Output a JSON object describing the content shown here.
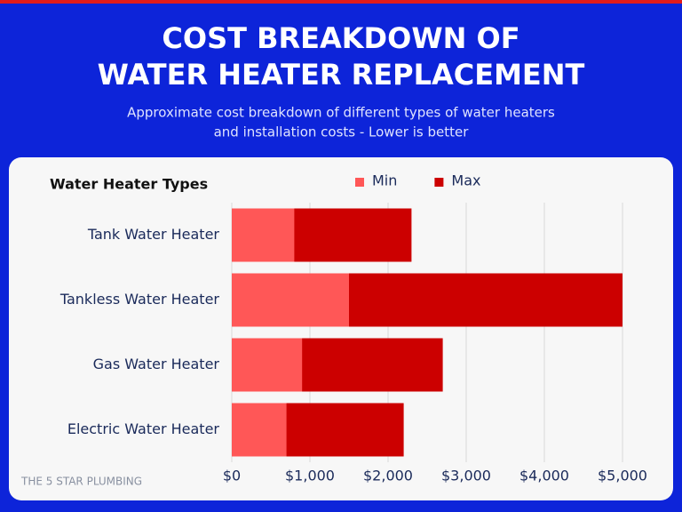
{
  "chart_data": {
    "type": "bar",
    "orientation": "horizontal",
    "overlap": true,
    "title": [
      "COST BREAKDOWN OF",
      "WATER HEATER REPLACEMENT"
    ],
    "subtitle": [
      "Approximate cost breakdown of different types of water heaters",
      "and installation costs - Lower is better"
    ],
    "y_label": "Water Heater Types",
    "categories": [
      "Tank Water Heater",
      "Tankless Water Heater",
      "Gas Water Heater",
      "Electric Water Heater"
    ],
    "series": [
      {
        "name": "Max",
        "color": "#cc0000",
        "values": [
          2300,
          5000,
          2700,
          2200
        ]
      },
      {
        "name": "Min",
        "color": "#ff5757",
        "values": [
          800,
          1500,
          900,
          700
        ]
      }
    ],
    "legend_order": [
      1,
      0
    ],
    "xlim": [
      0,
      5000
    ],
    "xticks": [
      {
        "value": 0,
        "label": "$0"
      },
      {
        "value": 1000,
        "label": "$1,000"
      },
      {
        "value": 2000,
        "label": "$2,000"
      },
      {
        "value": 3000,
        "label": "$3,000"
      },
      {
        "value": 4000,
        "label": "$4,000"
      },
      {
        "value": 5000,
        "label": "$5,000"
      }
    ],
    "grid": true,
    "footer": "THE 5 STAR PLUMBING"
  }
}
